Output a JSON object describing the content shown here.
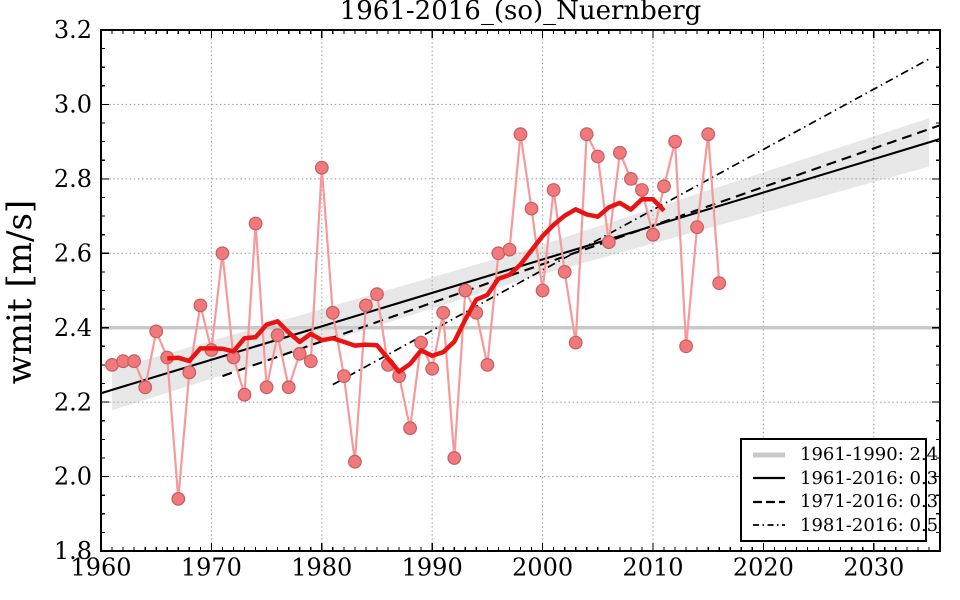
{
  "title": "1961-2016_(so)_Nuernberg",
  "axes": {
    "ylabel": "wmit [m/s]",
    "x_tick_labels": [
      "1960",
      "1970",
      "1980",
      "1990",
      "2000",
      "2010",
      "2020",
      "2030"
    ],
    "y_tick_labels": [
      "1.8",
      "2.0",
      "2.2",
      "2.4",
      "2.6",
      "2.8",
      "3.0",
      "3.2"
    ]
  },
  "legend": {
    "items": [
      {
        "label": "1961-1990: 2.4",
        "style": "mean"
      },
      {
        "label": "1961-2016: 0.3",
        "style": "solid"
      },
      {
        "label": "1971-2016: 0.3",
        "style": "dashed"
      },
      {
        "label": "1981-2016: 0.5",
        "style": "dashdot"
      }
    ]
  },
  "colors": {
    "annual_marker_fill": "#f2797b",
    "annual_marker_edge": "#c35f60",
    "annual_line": "#f7999b",
    "running_mean": "#e81414",
    "reference_mean": "#c9c9c9",
    "trend": "#000000",
    "band_fill": "#bbbbbb",
    "grid": "#a6a6a6"
  },
  "chart_data": {
    "type": "line",
    "title": "1961-2016_(so)_Nuernberg",
    "xlabel": "",
    "ylabel": "wmit [m/s]",
    "xlim": [
      1960,
      2036
    ],
    "ylim": [
      1.8,
      3.2
    ],
    "x_ticks": [
      1960,
      1970,
      1980,
      1990,
      2000,
      2010,
      2020,
      2030
    ],
    "y_ticks": [
      1.8,
      2.0,
      2.2,
      2.4,
      2.6,
      2.8,
      3.0,
      3.2
    ],
    "x_minor_step": 1,
    "y_minor_step": 0.05,
    "grid": true,
    "legend_position": "lower right",
    "years": [
      1961,
      1962,
      1963,
      1964,
      1965,
      1966,
      1967,
      1968,
      1969,
      1970,
      1971,
      1972,
      1973,
      1974,
      1975,
      1976,
      1977,
      1978,
      1979,
      1980,
      1981,
      1982,
      1983,
      1984,
      1985,
      1986,
      1987,
      1988,
      1989,
      1990,
      1991,
      1992,
      1993,
      1994,
      1995,
      1996,
      1997,
      1998,
      1999,
      2000,
      2001,
      2002,
      2003,
      2004,
      2005,
      2006,
      2007,
      2008,
      2009,
      2010,
      2011,
      2012,
      2013,
      2014,
      2015,
      2016
    ],
    "annual_wmit": [
      2.3,
      2.31,
      2.31,
      2.24,
      2.39,
      2.32,
      1.94,
      2.28,
      2.46,
      2.34,
      2.6,
      2.32,
      2.22,
      2.68,
      2.24,
      2.38,
      2.24,
      2.33,
      2.31,
      2.83,
      2.44,
      2.27,
      2.04,
      2.46,
      2.49,
      2.3,
      2.27,
      2.13,
      2.36,
      2.29,
      2.44,
      2.05,
      2.5,
      2.44,
      2.3,
      2.6,
      2.61,
      2.92,
      2.72,
      2.5,
      2.77,
      2.55,
      2.36,
      2.92,
      2.86,
      2.63,
      2.87,
      2.8,
      2.77,
      2.65,
      2.78,
      2.9,
      2.35,
      2.67,
      2.92,
      2.52
    ],
    "running_mean": {
      "window": 11,
      "centered": true,
      "span": [
        1966,
        2011
      ]
    },
    "reference_mean": {
      "label": "1961-1990: 2.4",
      "value": 2.4,
      "x": [
        1960,
        2036
      ]
    },
    "trends": [
      {
        "label": "1961-2016: 0.3",
        "style": "solid",
        "x": [
          1960,
          2036
        ],
        "y": [
          2.224,
          2.907
        ]
      },
      {
        "label": "1971-2016: 0.3",
        "style": "dashed",
        "x": [
          1971,
          2036
        ],
        "y": [
          2.27,
          2.944
        ]
      },
      {
        "label": "1981-2016: 0.5",
        "style": "dashdot",
        "x": [
          1981,
          2035
        ],
        "y": [
          2.247,
          3.122
        ]
      }
    ],
    "confidence_band": {
      "x": [
        1961,
        1998,
        2035
      ],
      "upper": [
        2.288,
        2.604,
        2.963
      ],
      "lower": [
        2.178,
        2.527,
        2.833
      ]
    }
  }
}
